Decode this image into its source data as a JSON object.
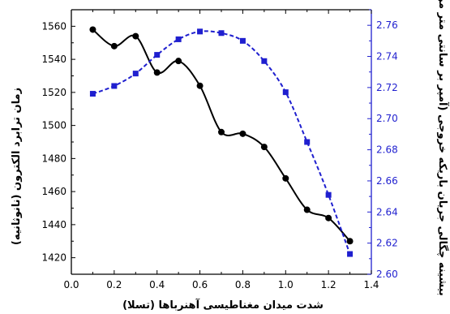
{
  "chart_data": {
    "type": "line",
    "xlabel": "شدت میدان مغناطیسی آهنرباها (تسلا)",
    "ylabel_left": "زمان ترابرد الکترون (نانوثانیه)",
    "ylabel_right": "بیشینه چگالی جریان باریکه خروجی (آمپر بر سانتی متر مربع)",
    "xlim": [
      0.0,
      1.4
    ],
    "ylim_left": [
      1410,
      1570
    ],
    "ylim_right": [
      2.6,
      2.77
    ],
    "x_ticks": [
      "0.0",
      "0.2",
      "0.4",
      "0.6",
      "0.8",
      "1.0",
      "1.2",
      "1.4"
    ],
    "y_left_ticks": [
      "1420",
      "1440",
      "1460",
      "1480",
      "1500",
      "1520",
      "1540",
      "1560"
    ],
    "y_right_ticks": [
      "2.60",
      "2.62",
      "2.64",
      "2.66",
      "2.68",
      "2.70",
      "2.72",
      "2.74",
      "2.76"
    ],
    "grid": false,
    "series": [
      {
        "axis": "left",
        "style": "solid",
        "marker": "circle",
        "color": "#000000",
        "x": [
          0.1,
          0.2,
          0.3,
          0.4,
          0.5,
          0.6,
          0.7,
          0.8,
          0.9,
          1.0,
          1.1,
          1.2,
          1.3
        ],
        "y": [
          1558,
          1548,
          1554,
          1532,
          1539,
          1524,
          1496,
          1495,
          1487,
          1468,
          1449,
          1444,
          1430
        ]
      },
      {
        "axis": "right",
        "style": "dashed",
        "marker": "square",
        "color": "#1f1fcf",
        "x": [
          0.1,
          0.2,
          0.3,
          0.4,
          0.5,
          0.6,
          0.7,
          0.8,
          0.9,
          1.0,
          1.1,
          1.2,
          1.3
        ],
        "y": [
          2.716,
          2.721,
          2.729,
          2.741,
          2.751,
          2.756,
          2.755,
          2.75,
          2.737,
          2.717,
          2.685,
          2.651,
          2.613
        ]
      }
    ]
  }
}
